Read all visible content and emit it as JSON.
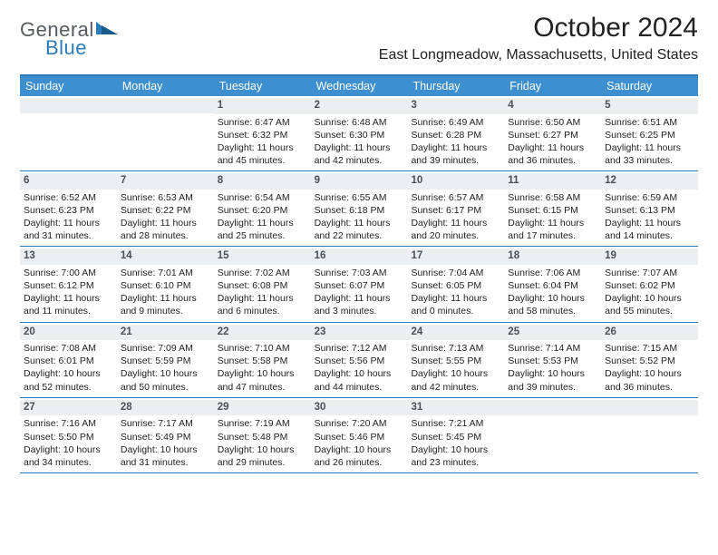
{
  "logo": {
    "part1": "General",
    "part2": "Blue"
  },
  "title": "October 2024",
  "location": "East Longmeadow, Massachusetts, United States",
  "colors": {
    "header_bg": "#3d8fcf",
    "rule": "#2c7bb8",
    "daynum_bg": "#eceff1",
    "text": "#222222"
  },
  "fonts": {
    "title_size_pt": 22,
    "location_size_pt": 12,
    "dow_size_pt": 9,
    "cell_size_pt": 8
  },
  "dow": [
    "Sunday",
    "Monday",
    "Tuesday",
    "Wednesday",
    "Thursday",
    "Friday",
    "Saturday"
  ],
  "weeks": [
    [
      {
        "n": "",
        "lines": []
      },
      {
        "n": "",
        "lines": []
      },
      {
        "n": "1",
        "lines": [
          "Sunrise: 6:47 AM",
          "Sunset: 6:32 PM",
          "Daylight: 11 hours and 45 minutes."
        ]
      },
      {
        "n": "2",
        "lines": [
          "Sunrise: 6:48 AM",
          "Sunset: 6:30 PM",
          "Daylight: 11 hours and 42 minutes."
        ]
      },
      {
        "n": "3",
        "lines": [
          "Sunrise: 6:49 AM",
          "Sunset: 6:28 PM",
          "Daylight: 11 hours and 39 minutes."
        ]
      },
      {
        "n": "4",
        "lines": [
          "Sunrise: 6:50 AM",
          "Sunset: 6:27 PM",
          "Daylight: 11 hours and 36 minutes."
        ]
      },
      {
        "n": "5",
        "lines": [
          "Sunrise: 6:51 AM",
          "Sunset: 6:25 PM",
          "Daylight: 11 hours and 33 minutes."
        ]
      }
    ],
    [
      {
        "n": "6",
        "lines": [
          "Sunrise: 6:52 AM",
          "Sunset: 6:23 PM",
          "Daylight: 11 hours and 31 minutes."
        ]
      },
      {
        "n": "7",
        "lines": [
          "Sunrise: 6:53 AM",
          "Sunset: 6:22 PM",
          "Daylight: 11 hours and 28 minutes."
        ]
      },
      {
        "n": "8",
        "lines": [
          "Sunrise: 6:54 AM",
          "Sunset: 6:20 PM",
          "Daylight: 11 hours and 25 minutes."
        ]
      },
      {
        "n": "9",
        "lines": [
          "Sunrise: 6:55 AM",
          "Sunset: 6:18 PM",
          "Daylight: 11 hours and 22 minutes."
        ]
      },
      {
        "n": "10",
        "lines": [
          "Sunrise: 6:57 AM",
          "Sunset: 6:17 PM",
          "Daylight: 11 hours and 20 minutes."
        ]
      },
      {
        "n": "11",
        "lines": [
          "Sunrise: 6:58 AM",
          "Sunset: 6:15 PM",
          "Daylight: 11 hours and 17 minutes."
        ]
      },
      {
        "n": "12",
        "lines": [
          "Sunrise: 6:59 AM",
          "Sunset: 6:13 PM",
          "Daylight: 11 hours and 14 minutes."
        ]
      }
    ],
    [
      {
        "n": "13",
        "lines": [
          "Sunrise: 7:00 AM",
          "Sunset: 6:12 PM",
          "Daylight: 11 hours and 11 minutes."
        ]
      },
      {
        "n": "14",
        "lines": [
          "Sunrise: 7:01 AM",
          "Sunset: 6:10 PM",
          "Daylight: 11 hours and 9 minutes."
        ]
      },
      {
        "n": "15",
        "lines": [
          "Sunrise: 7:02 AM",
          "Sunset: 6:08 PM",
          "Daylight: 11 hours and 6 minutes."
        ]
      },
      {
        "n": "16",
        "lines": [
          "Sunrise: 7:03 AM",
          "Sunset: 6:07 PM",
          "Daylight: 11 hours and 3 minutes."
        ]
      },
      {
        "n": "17",
        "lines": [
          "Sunrise: 7:04 AM",
          "Sunset: 6:05 PM",
          "Daylight: 11 hours and 0 minutes."
        ]
      },
      {
        "n": "18",
        "lines": [
          "Sunrise: 7:06 AM",
          "Sunset: 6:04 PM",
          "Daylight: 10 hours and 58 minutes."
        ]
      },
      {
        "n": "19",
        "lines": [
          "Sunrise: 7:07 AM",
          "Sunset: 6:02 PM",
          "Daylight: 10 hours and 55 minutes."
        ]
      }
    ],
    [
      {
        "n": "20",
        "lines": [
          "Sunrise: 7:08 AM",
          "Sunset: 6:01 PM",
          "Daylight: 10 hours and 52 minutes."
        ]
      },
      {
        "n": "21",
        "lines": [
          "Sunrise: 7:09 AM",
          "Sunset: 5:59 PM",
          "Daylight: 10 hours and 50 minutes."
        ]
      },
      {
        "n": "22",
        "lines": [
          "Sunrise: 7:10 AM",
          "Sunset: 5:58 PM",
          "Daylight: 10 hours and 47 minutes."
        ]
      },
      {
        "n": "23",
        "lines": [
          "Sunrise: 7:12 AM",
          "Sunset: 5:56 PM",
          "Daylight: 10 hours and 44 minutes."
        ]
      },
      {
        "n": "24",
        "lines": [
          "Sunrise: 7:13 AM",
          "Sunset: 5:55 PM",
          "Daylight: 10 hours and 42 minutes."
        ]
      },
      {
        "n": "25",
        "lines": [
          "Sunrise: 7:14 AM",
          "Sunset: 5:53 PM",
          "Daylight: 10 hours and 39 minutes."
        ]
      },
      {
        "n": "26",
        "lines": [
          "Sunrise: 7:15 AM",
          "Sunset: 5:52 PM",
          "Daylight: 10 hours and 36 minutes."
        ]
      }
    ],
    [
      {
        "n": "27",
        "lines": [
          "Sunrise: 7:16 AM",
          "Sunset: 5:50 PM",
          "Daylight: 10 hours and 34 minutes."
        ]
      },
      {
        "n": "28",
        "lines": [
          "Sunrise: 7:17 AM",
          "Sunset: 5:49 PM",
          "Daylight: 10 hours and 31 minutes."
        ]
      },
      {
        "n": "29",
        "lines": [
          "Sunrise: 7:19 AM",
          "Sunset: 5:48 PM",
          "Daylight: 10 hours and 29 minutes."
        ]
      },
      {
        "n": "30",
        "lines": [
          "Sunrise: 7:20 AM",
          "Sunset: 5:46 PM",
          "Daylight: 10 hours and 26 minutes."
        ]
      },
      {
        "n": "31",
        "lines": [
          "Sunrise: 7:21 AM",
          "Sunset: 5:45 PM",
          "Daylight: 10 hours and 23 minutes."
        ]
      },
      {
        "n": "",
        "lines": []
      },
      {
        "n": "",
        "lines": []
      }
    ]
  ]
}
